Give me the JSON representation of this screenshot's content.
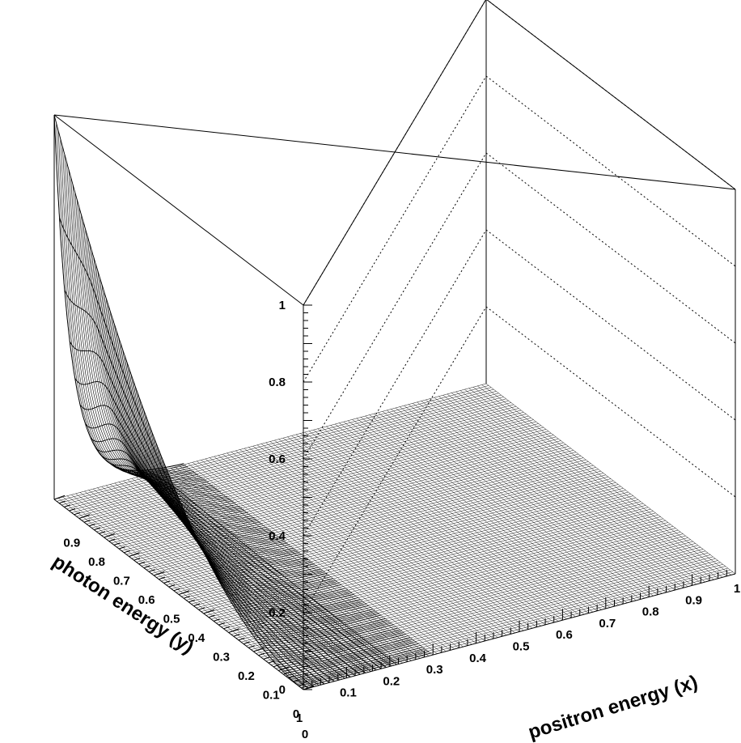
{
  "chart_data": {
    "type": "surface",
    "title": "",
    "xlabel": "positron energy (x)",
    "ylabel": "photon energy (y)",
    "zlabel": "",
    "xlim": [
      0,
      1
    ],
    "ylim": [
      0,
      1
    ],
    "zlim": [
      0,
      1
    ],
    "x_ticks": [
      "0",
      "0.1",
      "0.2",
      "0.3",
      "0.4",
      "0.5",
      "0.6",
      "0.7",
      "0.8",
      "0.9",
      "1"
    ],
    "y_ticks": [
      "0",
      "0.1",
      "0.2",
      "0.3",
      "0.4",
      "0.5",
      "0.6",
      "0.7",
      "0.8",
      "0.9",
      "1"
    ],
    "z_ticks": [
      "0",
      "0.2",
      "0.4",
      "0.6",
      "0.8",
      "1"
    ],
    "grid": "z-gridlines on back walls (dotted)",
    "surface_edge_x_eq_0": {
      "y": [
        0,
        0.1,
        0.2,
        0.3,
        0.4,
        0.5,
        0.6,
        0.7,
        0.8,
        0.9,
        1.0
      ],
      "z": [
        0,
        0.01,
        0.04,
        0.09,
        0.16,
        0.25,
        0.36,
        0.49,
        0.64,
        0.81,
        1.0
      ]
    },
    "surface_section_x_eq_0_1": {
      "y": [
        0,
        0.2,
        0.4,
        0.6,
        0.8,
        1.0
      ],
      "z": [
        0,
        0.003,
        0.04,
        0.14,
        0.32,
        0.63
      ]
    },
    "surface_floor_beyond": "z ≈ 0 for x > 0.3 and for y < x"
  }
}
